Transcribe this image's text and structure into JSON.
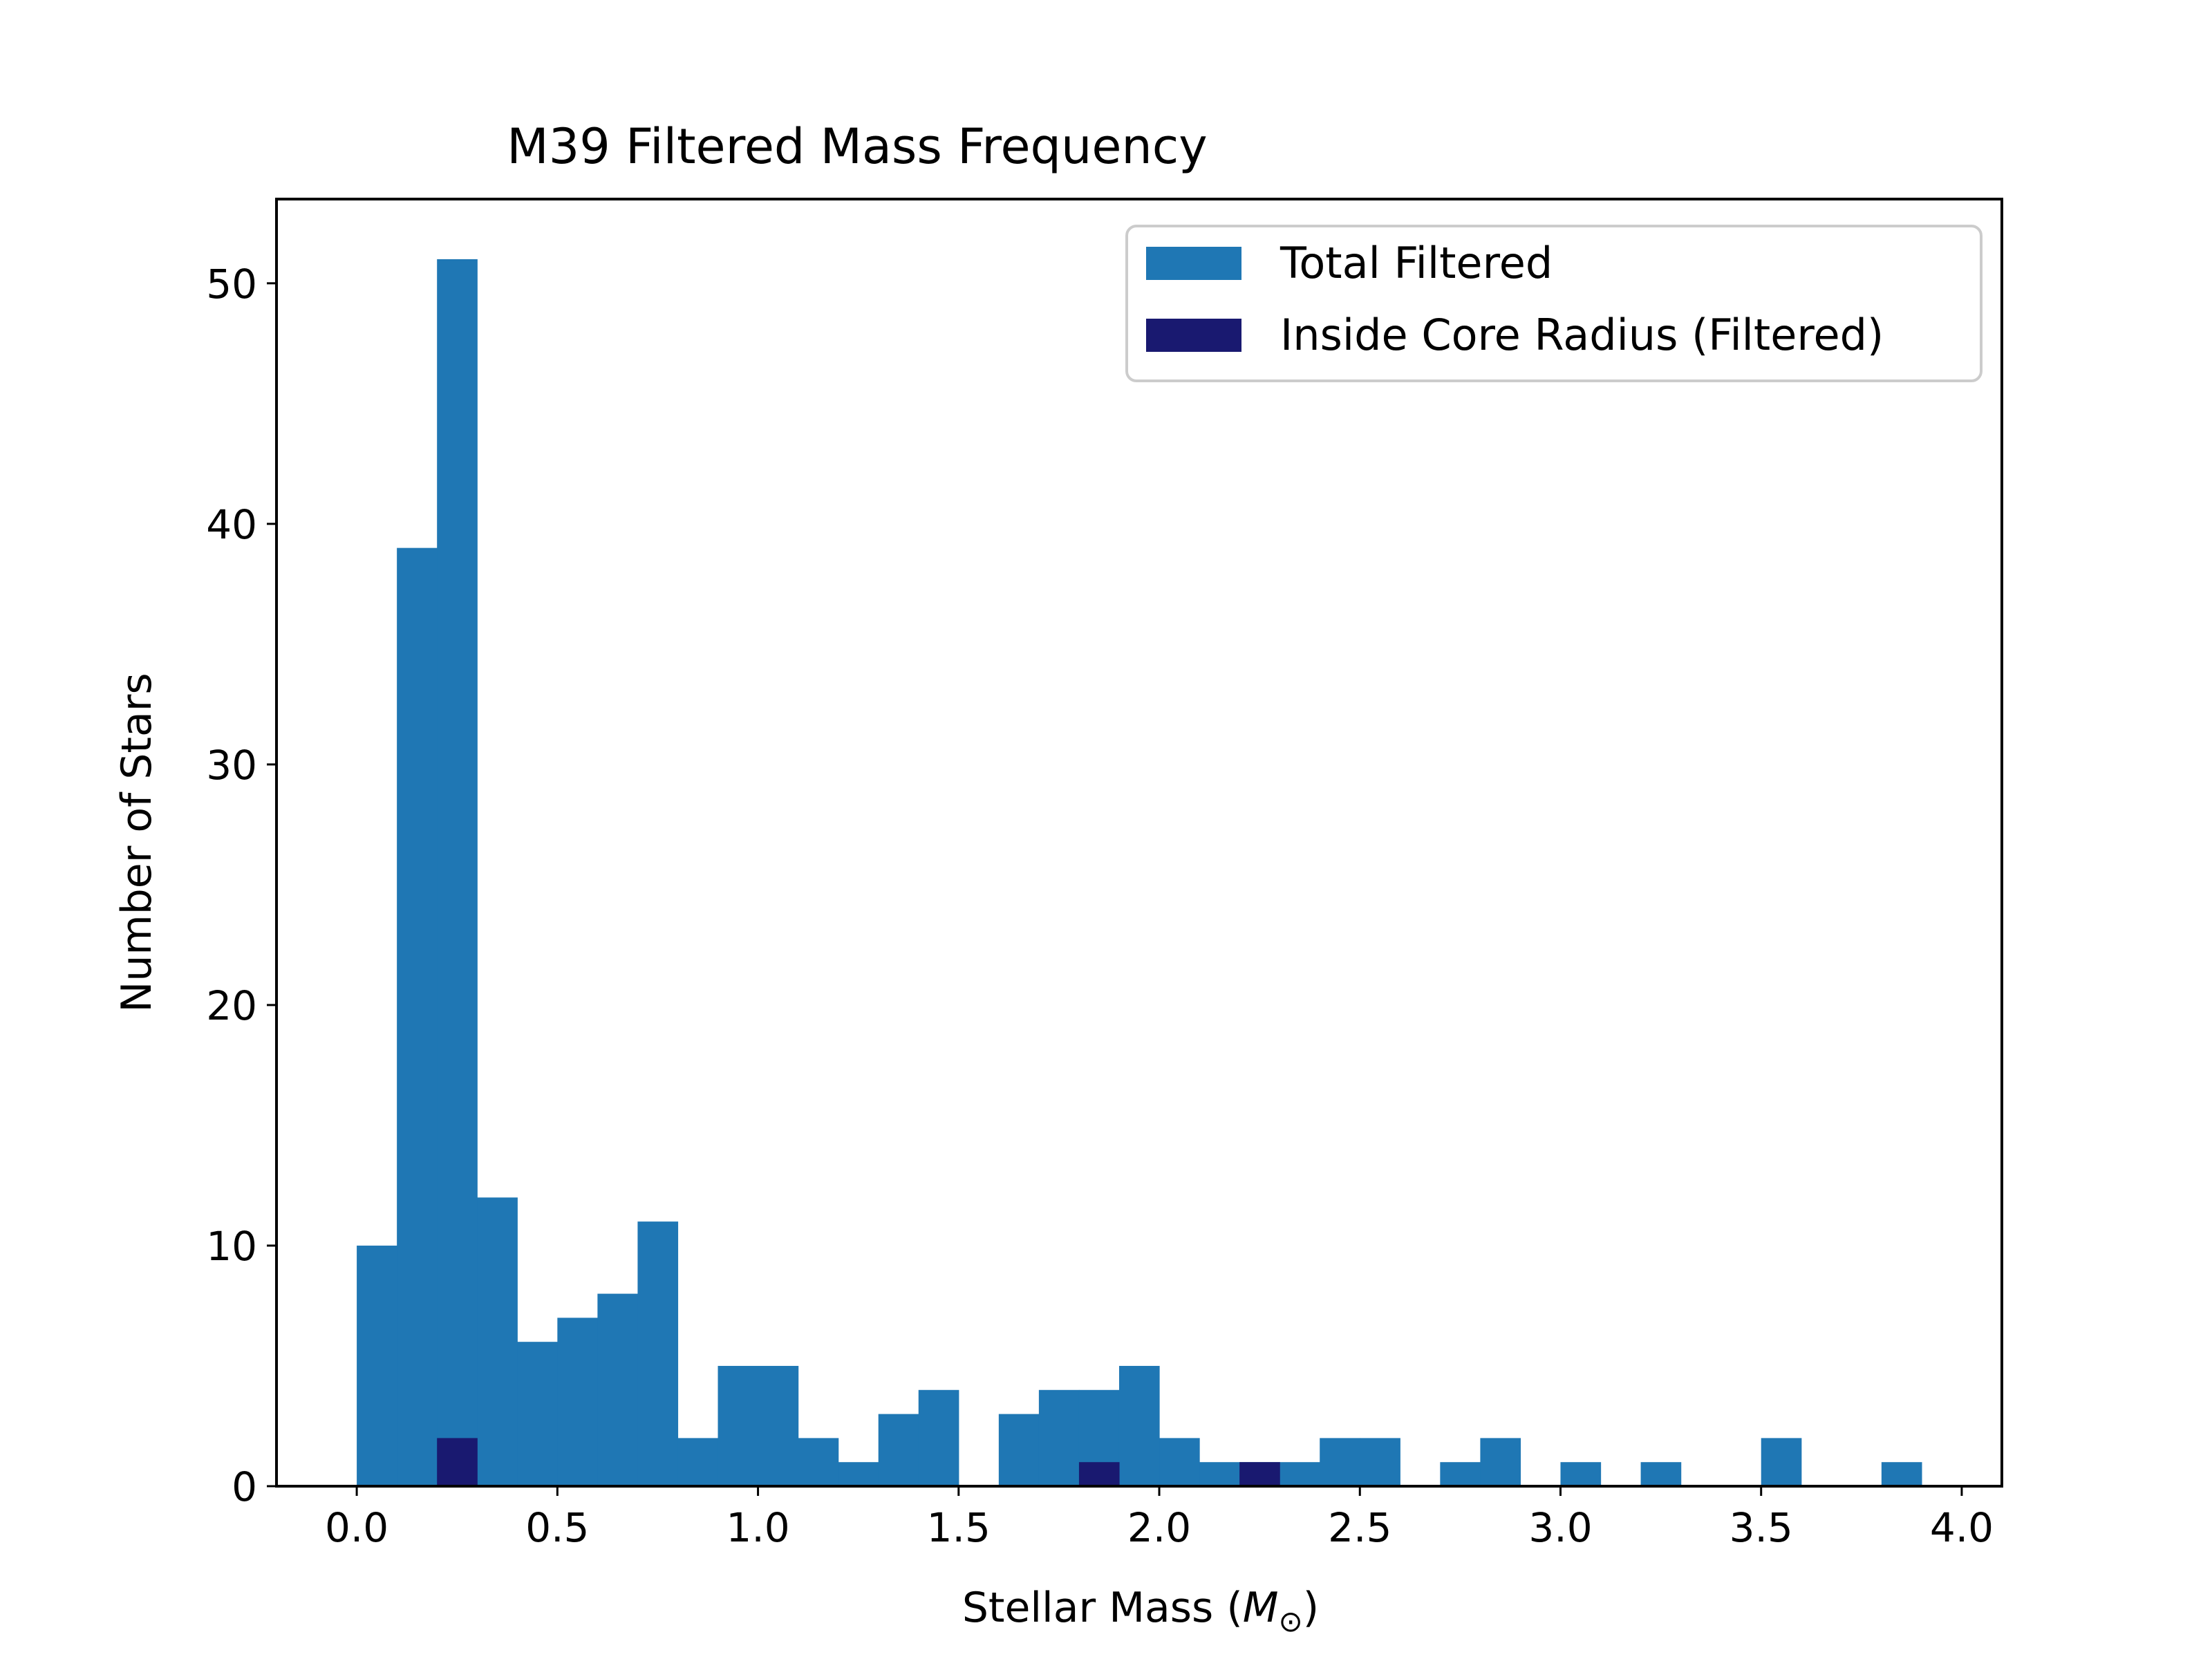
{
  "chart_data": {
    "type": "bar",
    "title": "M39 Filtered Mass Frequency",
    "xlabel_prefix": "Stellar Mass (",
    "xlabel_symbol": "M",
    "xlabel_subscript": "⊙",
    "xlabel_suffix": ")",
    "ylabel": "Number of Stars",
    "xlim": [
      -0.2,
      4.1
    ],
    "ylim": [
      0,
      53.5
    ],
    "xticks": [
      "0.0",
      "0.5",
      "1.0",
      "1.5",
      "2.0",
      "2.5",
      "3.0",
      "3.5",
      "4.0"
    ],
    "yticks": [
      "0",
      "10",
      "20",
      "30",
      "40",
      "50"
    ],
    "bin_width": 0.1,
    "bin_starts": [
      0.0,
      0.1,
      0.2,
      0.3,
      0.4,
      0.5,
      0.6,
      0.7,
      0.8,
      0.9,
      1.0,
      1.1,
      1.2,
      1.3,
      1.4,
      1.5,
      1.6,
      1.7,
      1.8,
      1.9,
      2.0,
      2.1,
      2.2,
      2.3,
      2.4,
      2.5,
      2.6,
      2.7,
      2.8,
      2.9,
      3.0,
      3.1,
      3.2,
      3.3,
      3.4,
      3.5,
      3.6,
      3.7,
      3.8
    ],
    "legend_position": "upper right",
    "series": [
      {
        "name": "Total Filtered",
        "color": "#1f77b4",
        "values": [
          10,
          39,
          51,
          12,
          6,
          7,
          8,
          11,
          2,
          5,
          5,
          2,
          1,
          3,
          4,
          0,
          3,
          4,
          4,
          5,
          2,
          1,
          1,
          1,
          2,
          2,
          0,
          1,
          2,
          0,
          1,
          0,
          1,
          0,
          0,
          2,
          0,
          0,
          1
        ]
      },
      {
        "name": "Inside Core Radius (Filtered)",
        "color": "#191970",
        "values": [
          0,
          0,
          2,
          0,
          0,
          0,
          0,
          0,
          0,
          0,
          0,
          0,
          0,
          0,
          0,
          0,
          0,
          0,
          1,
          0,
          0,
          0,
          1,
          0,
          0,
          0,
          0,
          0,
          0,
          0,
          0,
          0,
          0,
          0,
          0,
          0,
          0,
          0,
          0
        ]
      }
    ]
  }
}
